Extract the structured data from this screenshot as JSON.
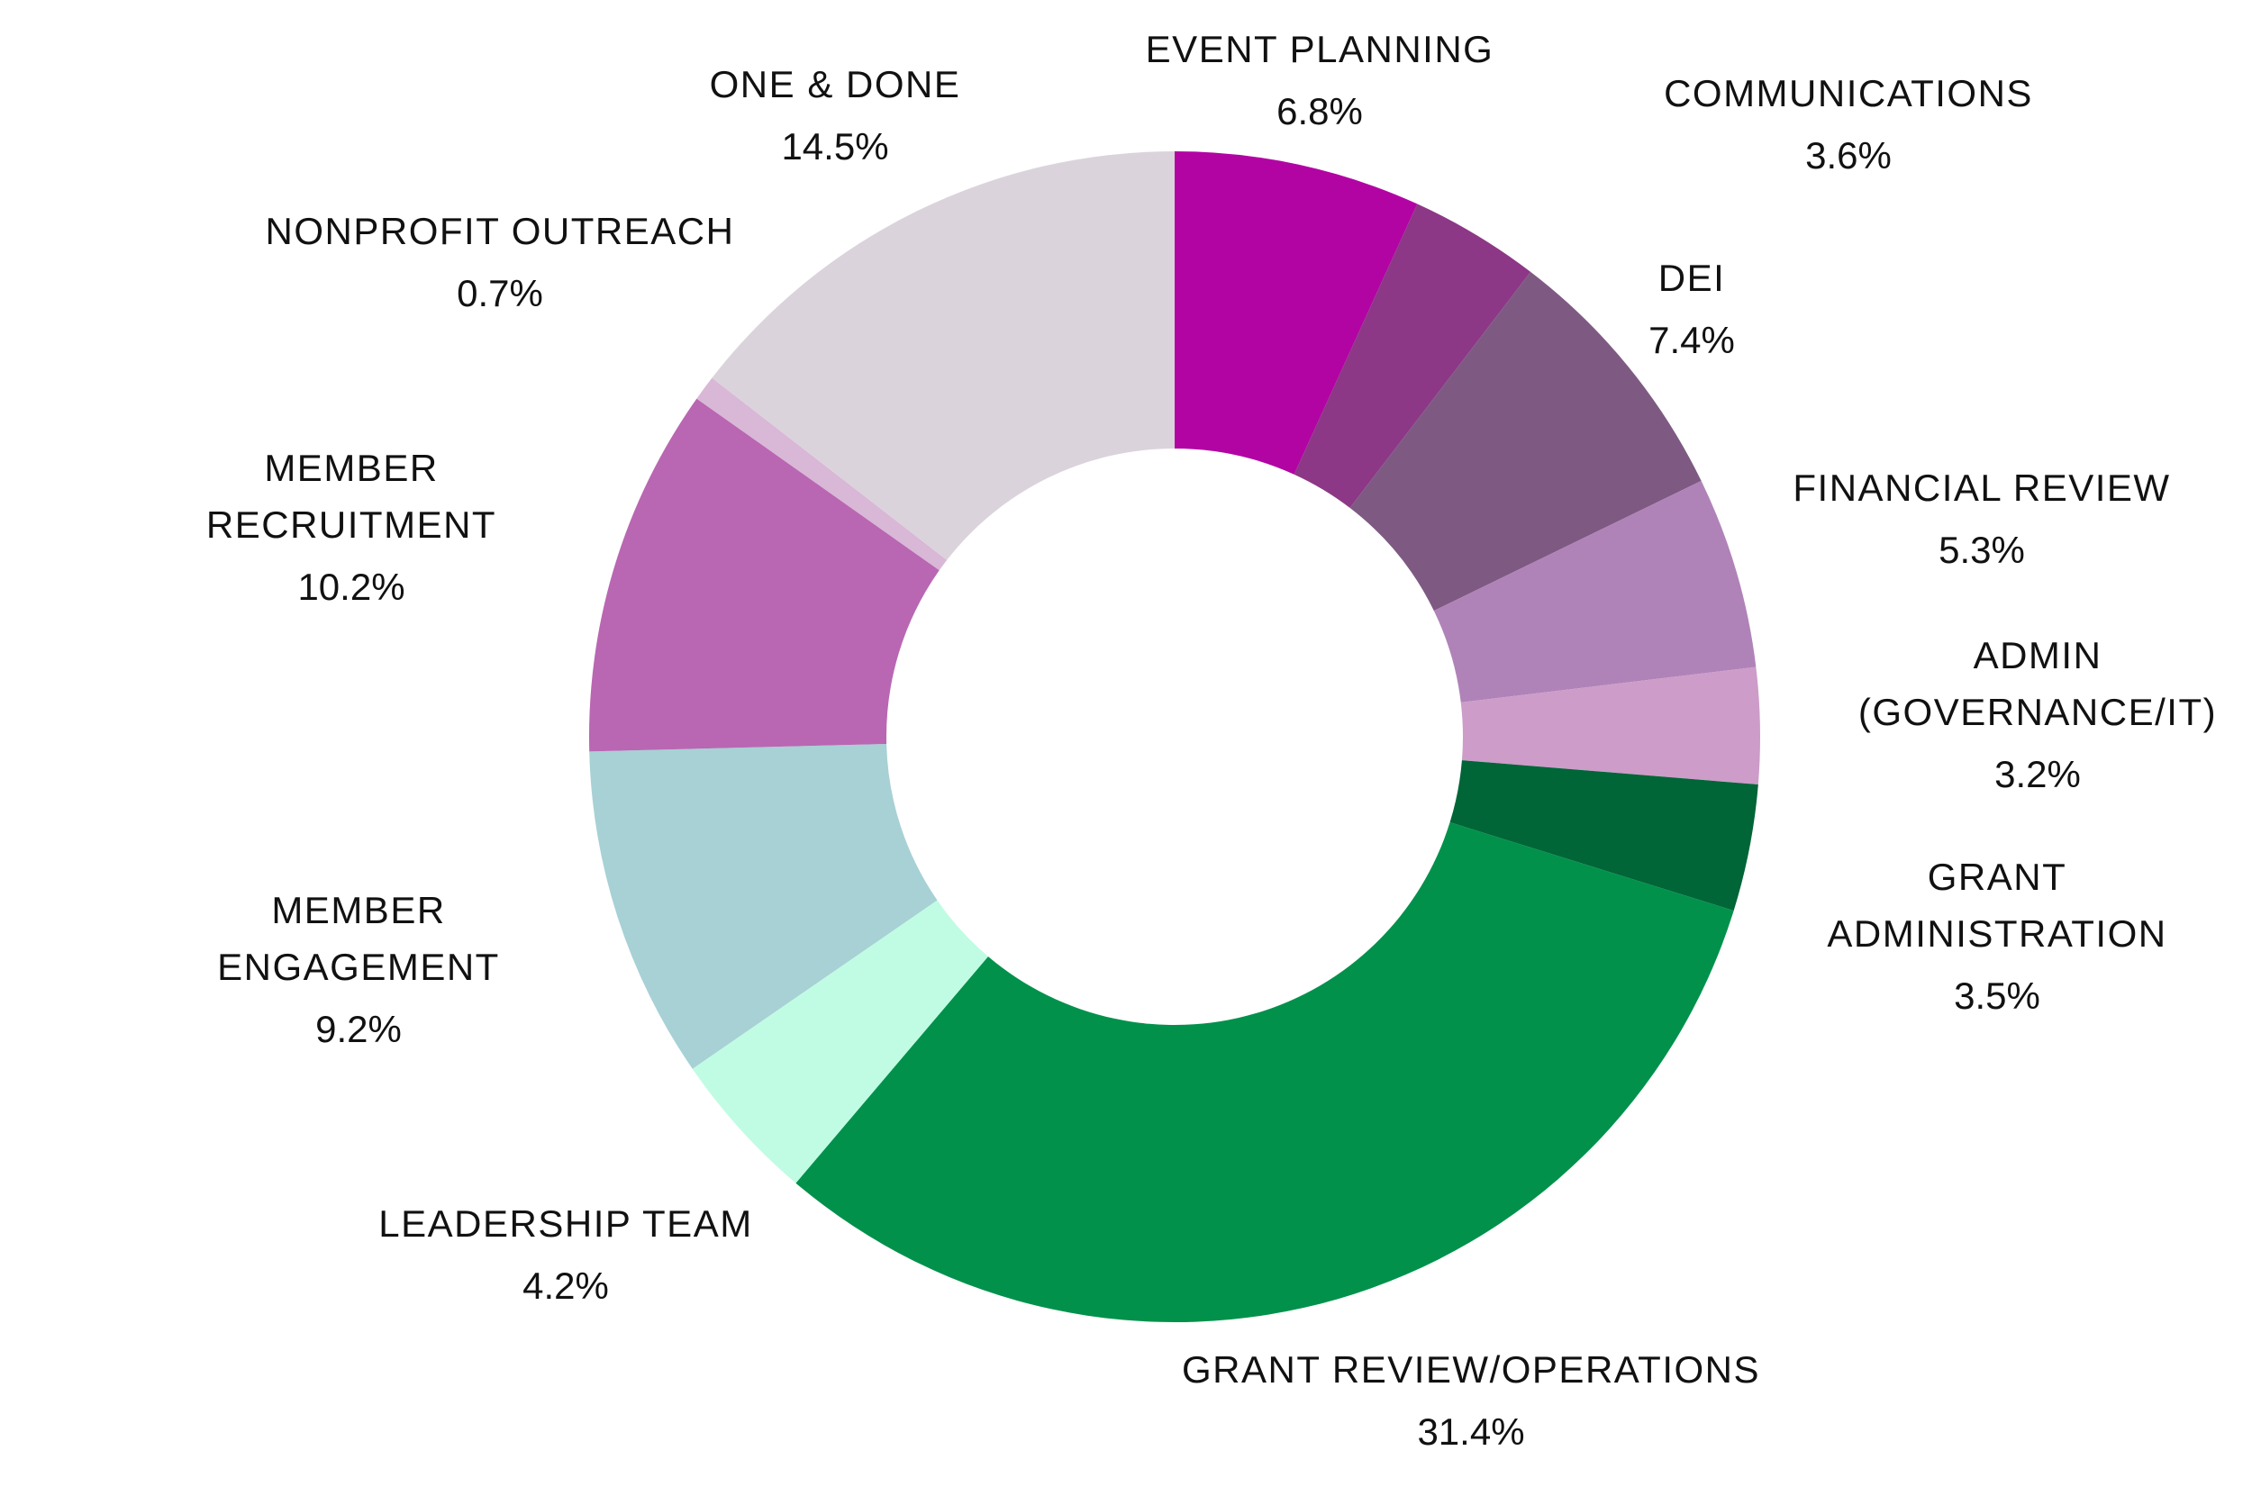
{
  "chart_data": {
    "type": "pie",
    "variant": "donut",
    "start_angle": "12 o'clock",
    "direction": "clockwise",
    "legend": "none (labels placed beside each slice)",
    "slices": [
      {
        "label": [
          "EVENT PLANNING"
        ],
        "value": 6.8,
        "value_label": "6.8%",
        "color": "#B204A3"
      },
      {
        "label": [
          "COMMUNICATIONS"
        ],
        "value": 3.6,
        "value_label": "3.6%",
        "color": "#8C3886"
      },
      {
        "label": [
          "DEI"
        ],
        "value": 7.4,
        "value_label": "7.4%",
        "color": "#7E5A83"
      },
      {
        "label": [
          "FINANCIAL REVIEW"
        ],
        "value": 5.3,
        "value_label": "5.3%",
        "color": "#B083B8"
      },
      {
        "label": [
          "ADMIN",
          "(GOVERNANCE/IT)"
        ],
        "value": 3.2,
        "value_label": "3.2%",
        "color": "#CD9CC9"
      },
      {
        "label": [
          "GRANT",
          "ADMINISTRATION"
        ],
        "value": 3.5,
        "value_label": "3.5%",
        "color": "#006537"
      },
      {
        "label": [
          "GRANT REVIEW/OPERATIONS"
        ],
        "value": 31.4,
        "value_label": "31.4%",
        "color": "#01914B"
      },
      {
        "label": [
          "LEADERSHIP TEAM"
        ],
        "value": 4.2,
        "value_label": "4.2%",
        "color": "#C0FCE3"
      },
      {
        "label": [
          "MEMBER",
          "ENGAGEMENT"
        ],
        "value": 9.2,
        "value_label": "9.2%",
        "color": "#A7D1D5"
      },
      {
        "label": [
          "MEMBER",
          "RECRUITMENT"
        ],
        "value": 10.2,
        "value_label": "10.2%",
        "color": "#B967B2"
      },
      {
        "label": [
          "NONPROFIT OUTREACH"
        ],
        "value": 0.7,
        "value_label": "0.7%",
        "color": "#D9B7D6"
      },
      {
        "label": [
          "ONE & DONE"
        ],
        "value": 14.5,
        "value_label": "14.5%",
        "color": "#DBD3DB"
      }
    ]
  }
}
